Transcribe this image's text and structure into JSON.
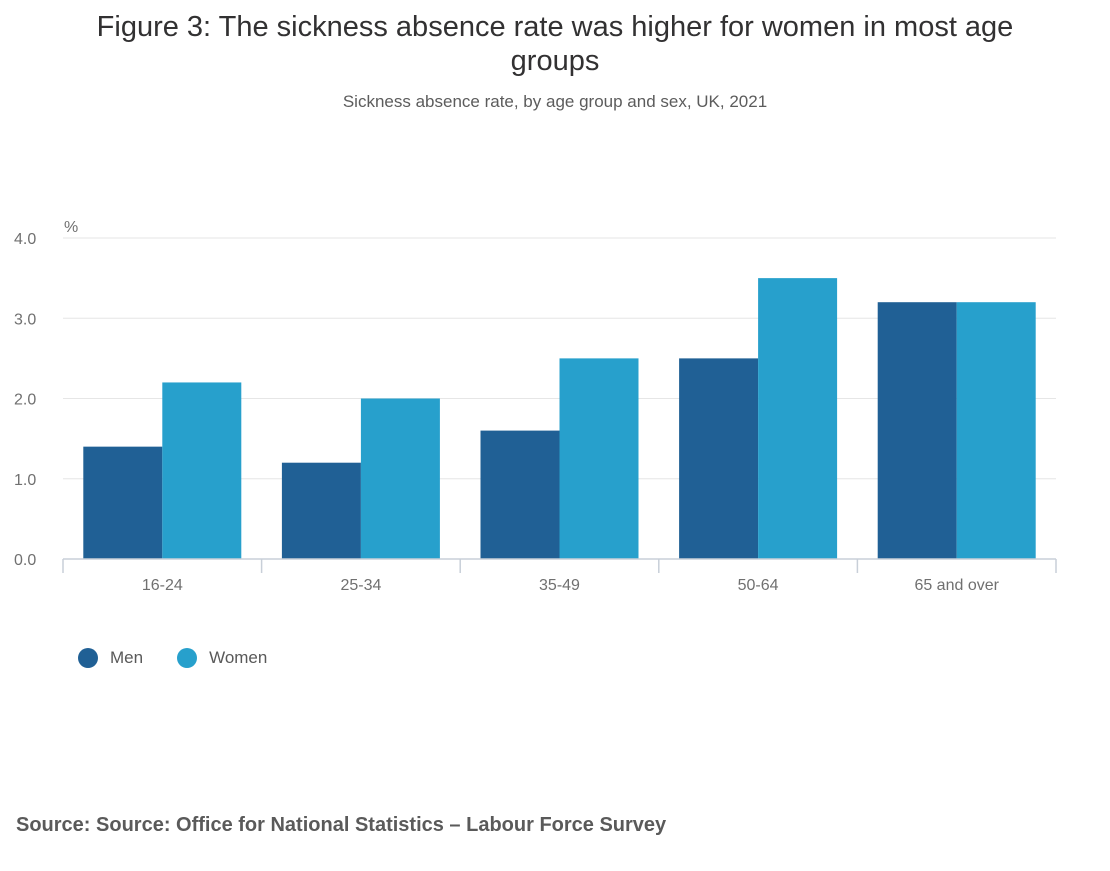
{
  "title": "Figure 3: The sickness absence rate was higher for women in most age groups",
  "subtitle": "Sickness absence rate, by age group and sex, UK, 2021",
  "source": "Source: Source: Office for National Statistics – Labour Force Survey",
  "colors": {
    "men": "#206095",
    "women": "#27a0cc",
    "grid": "#e6e6e6",
    "axis": "#c8cfd8",
    "tick_text": "#707070"
  },
  "chart_data": {
    "type": "bar",
    "title": "Figure 3: The sickness absence rate was higher for women in most age groups",
    "subtitle": "Sickness absence rate, by age group and sex, UK, 2021",
    "ylabel": "%",
    "xlabel": "",
    "ylim": [
      0,
      4
    ],
    "yticks": [
      "0.0",
      "1.0",
      "2.0",
      "3.0",
      "4.0"
    ],
    "grid": true,
    "legend_position": "bottom-left",
    "categories": [
      "16-24",
      "25-34",
      "35-49",
      "50-64",
      "65 and over"
    ],
    "series": [
      {
        "name": "Men",
        "values": [
          1.4,
          1.2,
          1.6,
          2.5,
          3.2
        ]
      },
      {
        "name": "Women",
        "values": [
          2.2,
          2.0,
          2.5,
          3.5,
          3.2
        ]
      }
    ]
  }
}
